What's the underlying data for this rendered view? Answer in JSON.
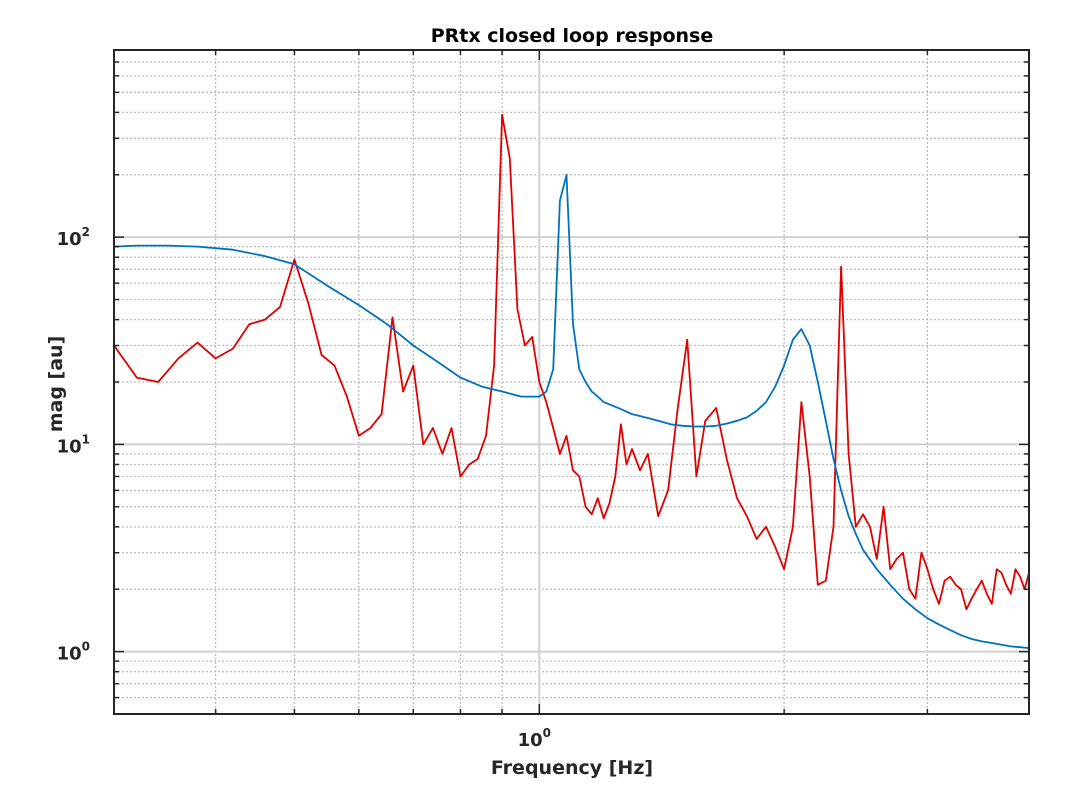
{
  "chart_data": {
    "type": "line",
    "title": "PRtx closed loop response",
    "xlabel": "Frequency [Hz]",
    "ylabel": "mag [au]",
    "xscale": "log",
    "yscale": "log",
    "xlim": [
      0.3,
      4.0
    ],
    "ylim": [
      0.5,
      800
    ],
    "grid": true,
    "x_ticks": [
      {
        "base": "10",
        "exp": "0",
        "value": 1
      }
    ],
    "y_ticks": [
      {
        "base": "10",
        "exp": "0",
        "value": 1
      },
      {
        "base": "10",
        "exp": "1",
        "value": 10
      },
      {
        "base": "10",
        "exp": "2",
        "value": 100
      }
    ],
    "series": [
      {
        "color": "#e00000",
        "x": [
          0.3,
          0.32,
          0.34,
          0.36,
          0.38,
          0.4,
          0.42,
          0.44,
          0.46,
          0.48,
          0.5,
          0.52,
          0.54,
          0.56,
          0.58,
          0.6,
          0.62,
          0.64,
          0.66,
          0.68,
          0.7,
          0.72,
          0.74,
          0.76,
          0.78,
          0.8,
          0.82,
          0.84,
          0.86,
          0.88,
          0.9,
          0.92,
          0.94,
          0.96,
          0.98,
          1.0,
          1.02,
          1.04,
          1.06,
          1.08,
          1.1,
          1.12,
          1.14,
          1.16,
          1.18,
          1.2,
          1.22,
          1.24,
          1.26,
          1.28,
          1.3,
          1.33,
          1.36,
          1.4,
          1.44,
          1.48,
          1.52,
          1.56,
          1.6,
          1.65,
          1.7,
          1.75,
          1.8,
          1.85,
          1.9,
          1.95,
          2.0,
          2.05,
          2.1,
          2.15,
          2.2,
          2.25,
          2.3,
          2.35,
          2.4,
          2.45,
          2.5,
          2.55,
          2.6,
          2.65,
          2.7,
          2.75,
          2.8,
          2.85,
          2.9,
          2.95,
          3.0,
          3.05,
          3.1,
          3.15,
          3.2,
          3.25,
          3.3,
          3.35,
          3.4,
          3.45,
          3.5,
          3.55,
          3.6,
          3.65,
          3.7,
          3.75,
          3.8,
          3.85,
          3.9,
          3.95,
          4.0
        ],
        "y": [
          30,
          21,
          20,
          26,
          31,
          26,
          29,
          38,
          40,
          46,
          78,
          48,
          27,
          24,
          17,
          11,
          12,
          14,
          41,
          18,
          24,
          10,
          12,
          9,
          12,
          7,
          8,
          8.5,
          11,
          24,
          390,
          240,
          45,
          30,
          33,
          20,
          16,
          12,
          9,
          11,
          7.5,
          7,
          5,
          4.6,
          5.5,
          4.4,
          5.2,
          7,
          12.5,
          8,
          9.5,
          7.5,
          9,
          4.5,
          6,
          15,
          32,
          7,
          13,
          15,
          8.5,
          5.5,
          4.5,
          3.5,
          4,
          3.2,
          2.5,
          4,
          16,
          7,
          2.1,
          2.2,
          4,
          72,
          9,
          4,
          4.6,
          4,
          2.8,
          5,
          2.5,
          2.8,
          3,
          2,
          1.8,
          3,
          2.5,
          2,
          1.7,
          2.2,
          2.3,
          2.1,
          2,
          1.6,
          1.8,
          2,
          2.2,
          1.9,
          1.7,
          2.5,
          2.4,
          2.1,
          1.9,
          2.5,
          2.3,
          2.0,
          2.4
        ]
      },
      {
        "color": "#0072bd",
        "x": [
          0.3,
          0.32,
          0.35,
          0.38,
          0.42,
          0.46,
          0.5,
          0.55,
          0.6,
          0.65,
          0.7,
          0.75,
          0.8,
          0.85,
          0.9,
          0.95,
          1.0,
          1.02,
          1.04,
          1.06,
          1.08,
          1.1,
          1.12,
          1.14,
          1.16,
          1.18,
          1.2,
          1.25,
          1.3,
          1.35,
          1.4,
          1.45,
          1.5,
          1.55,
          1.6,
          1.65,
          1.7,
          1.75,
          1.8,
          1.85,
          1.9,
          1.95,
          2.0,
          2.05,
          2.1,
          2.15,
          2.2,
          2.25,
          2.3,
          2.35,
          2.4,
          2.45,
          2.5,
          2.6,
          2.7,
          2.8,
          2.9,
          3.0,
          3.1,
          3.2,
          3.3,
          3.4,
          3.5,
          3.6,
          3.7,
          3.8,
          3.9,
          4.0
        ],
        "y": [
          90,
          91,
          91,
          90,
          87,
          81,
          74,
          58,
          47,
          38,
          30,
          25,
          21,
          19,
          18,
          17,
          17,
          18,
          23,
          150,
          200,
          38,
          23,
          20,
          18,
          17,
          16,
          15,
          14,
          13.5,
          13,
          12.5,
          12.3,
          12.2,
          12.2,
          12.3,
          12.6,
          13,
          13.5,
          14.5,
          16,
          19,
          24,
          32,
          36,
          30,
          20,
          13,
          8.5,
          6,
          4.5,
          3.7,
          3.1,
          2.5,
          2.1,
          1.8,
          1.6,
          1.45,
          1.35,
          1.27,
          1.2,
          1.15,
          1.12,
          1.1,
          1.08,
          1.06,
          1.05,
          1.04
        ]
      }
    ]
  }
}
